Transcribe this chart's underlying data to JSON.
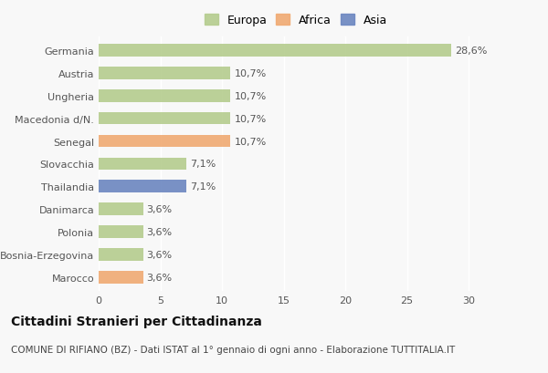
{
  "countries": [
    "Germania",
    "Austria",
    "Ungheria",
    "Macedonia d/N.",
    "Senegal",
    "Slovacchia",
    "Thailandia",
    "Danimarca",
    "Polonia",
    "Bosnia-Erzegovina",
    "Marocco"
  ],
  "values": [
    28.6,
    10.7,
    10.7,
    10.7,
    10.7,
    7.1,
    7.1,
    3.6,
    3.6,
    3.6,
    3.6
  ],
  "labels": [
    "28,6%",
    "10,7%",
    "10,7%",
    "10,7%",
    "10,7%",
    "7,1%",
    "7,1%",
    "3,6%",
    "3,6%",
    "3,6%",
    "3,6%"
  ],
  "continent": [
    "Europa",
    "Europa",
    "Europa",
    "Europa",
    "Africa",
    "Europa",
    "Asia",
    "Europa",
    "Europa",
    "Europa",
    "Africa"
  ],
  "colors": {
    "Europa": "#b5cc8e",
    "Africa": "#f0aa72",
    "Asia": "#6b86c0"
  },
  "legend_labels": [
    "Europa",
    "Africa",
    "Asia"
  ],
  "legend_colors": [
    "#b5cc8e",
    "#f0aa72",
    "#6b86c0"
  ],
  "xlim": [
    0,
    32
  ],
  "xticks": [
    0,
    5,
    10,
    15,
    20,
    25,
    30
  ],
  "title": "Cittadini Stranieri per Cittadinanza",
  "subtitle": "COMUNE DI RIFIANO (BZ) - Dati ISTAT al 1° gennaio di ogni anno - Elaborazione TUTTITALIA.IT",
  "background_color": "#f8f8f8",
  "bar_height": 0.55,
  "title_fontsize": 10,
  "subtitle_fontsize": 7.5,
  "tick_fontsize": 8,
  "label_fontsize": 8,
  "legend_fontsize": 9
}
